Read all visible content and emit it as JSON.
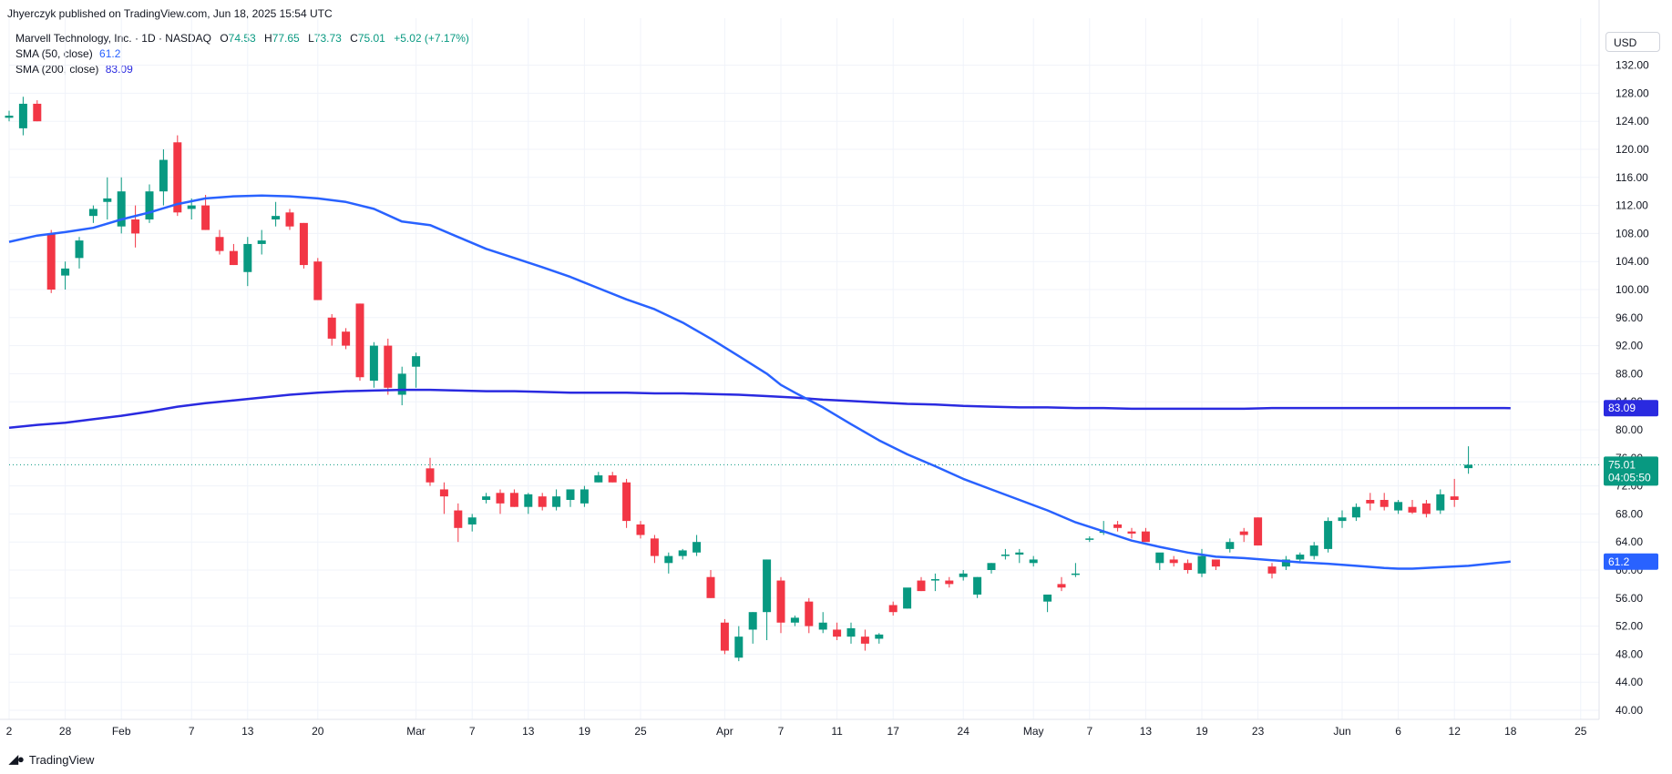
{
  "header": {
    "publisher": "Jhyerczyk published on TradingView.com, Jun 18, 2025 15:54 UTC"
  },
  "legend": {
    "symbol": "Marvell Technology, Inc. · 1D · NASDAQ",
    "o_label": "O",
    "o": "74.53",
    "h_label": "H",
    "h": "77.65",
    "l_label": "L",
    "l": "73.73",
    "c_label": "C",
    "c": "75.01",
    "change": "+5.02 (+7.17%)",
    "sma50_label": "SMA (50, close)",
    "sma50": "61.2",
    "sma200_label": "SMA (200, close)",
    "sma200": "83.09"
  },
  "currency": "USD",
  "footer": {
    "brand": "TradingView",
    "logo": "tradingview-logo-icon"
  },
  "colors": {
    "up": "#089981",
    "down": "#f23645",
    "sma50": "#2962ff",
    "sma200": "#2a2ae0",
    "last": "#089981"
  },
  "chart_data": {
    "type": "candlestick",
    "y_range": [
      38,
      138
    ],
    "y_ticks": [
      "40.00",
      "44.00",
      "48.00",
      "52.00",
      "56.00",
      "60.00",
      "64.00",
      "68.00",
      "72.00",
      "76.00",
      "80.00",
      "84.00",
      "88.00",
      "92.00",
      "96.00",
      "100.00",
      "104.00",
      "108.00",
      "112.00",
      "116.00",
      "120.00",
      "124.00",
      "128.00",
      "132.00"
    ],
    "x_ticks": [
      {
        "label": "2",
        "i": 0
      },
      {
        "label": "28",
        "i": 4
      },
      {
        "label": "Feb",
        "i": 8
      },
      {
        "label": "7",
        "i": 13
      },
      {
        "label": "13",
        "i": 17
      },
      {
        "label": "20",
        "i": 22
      },
      {
        "label": "Mar",
        "i": 29
      },
      {
        "label": "7",
        "i": 33
      },
      {
        "label": "13",
        "i": 37
      },
      {
        "label": "19",
        "i": 41
      },
      {
        "label": "25",
        "i": 45
      },
      {
        "label": "Apr",
        "i": 51
      },
      {
        "label": "7",
        "i": 55
      },
      {
        "label": "11",
        "i": 59
      },
      {
        "label": "17",
        "i": 63
      },
      {
        "label": "24",
        "i": 68
      },
      {
        "label": "May",
        "i": 73
      },
      {
        "label": "7",
        "i": 77
      },
      {
        "label": "13",
        "i": 81
      },
      {
        "label": "19",
        "i": 85
      },
      {
        "label": "23",
        "i": 89
      },
      {
        "label": "Jun",
        "i": 95
      },
      {
        "label": "6",
        "i": 99
      },
      {
        "label": "12",
        "i": 103
      },
      {
        "label": "18",
        "i": 107
      },
      {
        "label": "25",
        "i": 112
      }
    ],
    "candles": [
      [
        124.5,
        125.5,
        124,
        124.8
      ],
      [
        123,
        127.5,
        122,
        126.5
      ],
      [
        126.5,
        127,
        124,
        124
      ],
      [
        108,
        108.5,
        99.5,
        100
      ],
      [
        102,
        104,
        100,
        103
      ],
      [
        104.5,
        107.5,
        103,
        107
      ],
      [
        110.5,
        112,
        109.5,
        111.5
      ],
      [
        112.5,
        116,
        110,
        113
      ],
      [
        109,
        116,
        108,
        114
      ],
      [
        110,
        112,
        106,
        108
      ],
      [
        110,
        115,
        109.5,
        114
      ],
      [
        114,
        120,
        112,
        118.5
      ],
      [
        121,
        122,
        110.5,
        111
      ],
      [
        111.5,
        113,
        110,
        112
      ],
      [
        112,
        113.5,
        108.5,
        108.5
      ],
      [
        107.5,
        108.5,
        105,
        105.5
      ],
      [
        105.5,
        106.5,
        103.5,
        103.5
      ],
      [
        102.5,
        107.5,
        100.5,
        106.5
      ],
      [
        106.5,
        108.5,
        105,
        107
      ],
      [
        110,
        112.5,
        109,
        110.5
      ],
      [
        111,
        111.5,
        108.5,
        109
      ],
      [
        109.5,
        109.5,
        103,
        103.5
      ],
      [
        104,
        104.5,
        98.5,
        98.5
      ],
      [
        96,
        96.5,
        92,
        93
      ],
      [
        94,
        94.5,
        91.5,
        92
      ],
      [
        98,
        98,
        87,
        87.5
      ],
      [
        87,
        92.5,
        86,
        92
      ],
      [
        92,
        93,
        85,
        86
      ],
      [
        85,
        89,
        83.5,
        88
      ],
      [
        89,
        91,
        86,
        90.5
      ],
      [
        74.5,
        76,
        72,
        72.5
      ],
      [
        71.5,
        72.5,
        68,
        70.5
      ],
      [
        68.5,
        69.5,
        64,
        66
      ],
      [
        66.5,
        68,
        65.5,
        67.5
      ],
      [
        70,
        71,
        69.5,
        70.5
      ],
      [
        71,
        71.5,
        68,
        69.5
      ],
      [
        71,
        71.5,
        69,
        69
      ],
      [
        69,
        71,
        68,
        70.8
      ],
      [
        70.5,
        71,
        68.5,
        69
      ],
      [
        69,
        71.5,
        68.5,
        70.5
      ],
      [
        70,
        71.5,
        69,
        71.5
      ],
      [
        69.5,
        72,
        69,
        71.5
      ],
      [
        72.5,
        74,
        72.5,
        73.5
      ],
      [
        73.5,
        74,
        72.5,
        72.5
      ],
      [
        72.5,
        73,
        66,
        67
      ],
      [
        66.5,
        67,
        64.5,
        65
      ],
      [
        64.5,
        65,
        61,
        62
      ],
      [
        61,
        62.5,
        59.5,
        62
      ],
      [
        62,
        63,
        61.5,
        62.8
      ],
      [
        62.5,
        65,
        62,
        64
      ],
      [
        59,
        60,
        56,
        56
      ],
      [
        52.5,
        53,
        48,
        48.5
      ],
      [
        47.5,
        52,
        47,
        50.5
      ],
      [
        51.5,
        54,
        49.5,
        54
      ],
      [
        54,
        61.5,
        50,
        61.5
      ],
      [
        58.5,
        59,
        51,
        52.5
      ],
      [
        52.5,
        53.5,
        52,
        53.2
      ],
      [
        55.5,
        56,
        51,
        52
      ],
      [
        51.5,
        54,
        51,
        52.5
      ],
      [
        51.5,
        52.5,
        50,
        50.5
      ],
      [
        50.5,
        52.5,
        49.5,
        51.7
      ],
      [
        50.5,
        51.5,
        48.5,
        49.5
      ],
      [
        50.2,
        51,
        49.5,
        50.8
      ],
      [
        55,
        55.5,
        53.5,
        54
      ],
      [
        54.5,
        57,
        54.5,
        57.5
      ],
      [
        58.5,
        59,
        57,
        57
      ],
      [
        58.5,
        59.5,
        57,
        58.7
      ],
      [
        58.5,
        59,
        57.5,
        58
      ],
      [
        59,
        60,
        58.5,
        59.5
      ],
      [
        56.5,
        59,
        56,
        59
      ],
      [
        60,
        61,
        59.5,
        61
      ],
      [
        62,
        63,
        61.5,
        62.2
      ],
      [
        62.2,
        63,
        61,
        62.5
      ],
      [
        61,
        62,
        60.5,
        61.5
      ],
      [
        55.5,
        56,
        54,
        56.5
      ],
      [
        58,
        59,
        57,
        57.5
      ],
      [
        59.5,
        61,
        59,
        59.5
      ],
      [
        64.5,
        64.8,
        64,
        64.5
      ],
      [
        65.5,
        67,
        65,
        65.5
      ],
      [
        66.5,
        67,
        65.5,
        66
      ],
      [
        65.5,
        66,
        64.5,
        65.2
      ],
      [
        65.5,
        66,
        64,
        64
      ],
      [
        61,
        62,
        60,
        62.5
      ],
      [
        61.5,
        62,
        60.5,
        61
      ],
      [
        61,
        61.5,
        59.5,
        60
      ],
      [
        59.5,
        63,
        59,
        62
      ],
      [
        61.5,
        61.5,
        60,
        60.5
      ],
      [
        63,
        64.5,
        62.5,
        64
      ],
      [
        65.5,
        66,
        64,
        65
      ],
      [
        67.5,
        67.5,
        63.5,
        63.5
      ],
      [
        60.5,
        61,
        58.8,
        59.5
      ],
      [
        60.5,
        62,
        60,
        61.5
      ],
      [
        61.5,
        62.5,
        61,
        62.2
      ],
      [
        62,
        64,
        61.5,
        63.5
      ],
      [
        63,
        67.5,
        62.5,
        67
      ],
      [
        67,
        68.5,
        66,
        67.5
      ],
      [
        67.5,
        69.5,
        67,
        69
      ],
      [
        70,
        71,
        68.5,
        69.5
      ],
      [
        70,
        71,
        68.5,
        69
      ],
      [
        68.5,
        70,
        68,
        69.7
      ],
      [
        69,
        70,
        68,
        68.2
      ],
      [
        69.5,
        70,
        67.5,
        68
      ],
      [
        68.5,
        71.5,
        68,
        70.8
      ],
      [
        70.5,
        73,
        69,
        70
      ],
      [
        74.53,
        77.65,
        73.73,
        75.01
      ]
    ],
    "sma50": [
      [
        0,
        106.8
      ],
      [
        2,
        107.7
      ],
      [
        4,
        108.2
      ],
      [
        6,
        108.8
      ],
      [
        8,
        110
      ],
      [
        10,
        111
      ],
      [
        12,
        112.2
      ],
      [
        14,
        113
      ],
      [
        16,
        113.3
      ],
      [
        18,
        113.4
      ],
      [
        20,
        113.3
      ],
      [
        22,
        113
      ],
      [
        24,
        112.5
      ],
      [
        26,
        111.5
      ],
      [
        28,
        109.7
      ],
      [
        30,
        109.2
      ],
      [
        32,
        107.5
      ],
      [
        34,
        105.8
      ],
      [
        36,
        104.5
      ],
      [
        38,
        103.2
      ],
      [
        40,
        101.8
      ],
      [
        42,
        100.2
      ],
      [
        44,
        98.6
      ],
      [
        46,
        97.2
      ],
      [
        48,
        95.3
      ],
      [
        50,
        93
      ],
      [
        52,
        90.5
      ],
      [
        54,
        88
      ],
      [
        55,
        86.4
      ],
      [
        56,
        85.3
      ],
      [
        58,
        83.2
      ],
      [
        60,
        80.8
      ],
      [
        62,
        78.5
      ],
      [
        64,
        76.5
      ],
      [
        66,
        74.8
      ],
      [
        68,
        73
      ],
      [
        70,
        71.5
      ],
      [
        72,
        70
      ],
      [
        74,
        68.5
      ],
      [
        76,
        66.8
      ],
      [
        78,
        65.5
      ],
      [
        80,
        64.2
      ],
      [
        82,
        63.3
      ],
      [
        84,
        62.5
      ],
      [
        86,
        61.9
      ],
      [
        88,
        61.7
      ],
      [
        90,
        61.4
      ],
      [
        92,
        61.1
      ],
      [
        94,
        60.9
      ],
      [
        96,
        60.6
      ],
      [
        98,
        60.3
      ],
      [
        99,
        60.2
      ],
      [
        100,
        60.2
      ],
      [
        102,
        60.4
      ],
      [
        104,
        60.6
      ],
      [
        106,
        61
      ],
      [
        107,
        61.2
      ]
    ],
    "sma200": [
      [
        0,
        80.3
      ],
      [
        2,
        80.7
      ],
      [
        4,
        81
      ],
      [
        6,
        81.5
      ],
      [
        8,
        82
      ],
      [
        10,
        82.6
      ],
      [
        12,
        83.3
      ],
      [
        14,
        83.8
      ],
      [
        16,
        84.2
      ],
      [
        18,
        84.6
      ],
      [
        20,
        85
      ],
      [
        22,
        85.3
      ],
      [
        24,
        85.5
      ],
      [
        26,
        85.6
      ],
      [
        28,
        85.7
      ],
      [
        30,
        85.7
      ],
      [
        32,
        85.6
      ],
      [
        34,
        85.5
      ],
      [
        36,
        85.5
      ],
      [
        38,
        85.4
      ],
      [
        40,
        85.3
      ],
      [
        42,
        85.3
      ],
      [
        44,
        85.3
      ],
      [
        46,
        85.2
      ],
      [
        48,
        85.2
      ],
      [
        50,
        85.1
      ],
      [
        52,
        85
      ],
      [
        54,
        84.8
      ],
      [
        56,
        84.6
      ],
      [
        58,
        84.3
      ],
      [
        60,
        84.1
      ],
      [
        62,
        83.9
      ],
      [
        64,
        83.7
      ],
      [
        66,
        83.6
      ],
      [
        68,
        83.4
      ],
      [
        70,
        83.3
      ],
      [
        72,
        83.2
      ],
      [
        74,
        83.2
      ],
      [
        76,
        83.1
      ],
      [
        78,
        83.1
      ],
      [
        80,
        83
      ],
      [
        82,
        83
      ],
      [
        84,
        83
      ],
      [
        86,
        83
      ],
      [
        88,
        83
      ],
      [
        90,
        83.1
      ],
      [
        92,
        83.1
      ],
      [
        94,
        83.1
      ],
      [
        96,
        83.1
      ],
      [
        98,
        83.1
      ],
      [
        100,
        83.1
      ],
      [
        102,
        83.1
      ],
      [
        104,
        83.1
      ],
      [
        106,
        83.1
      ],
      [
        107,
        83.09
      ]
    ],
    "last_price": {
      "value": 75.01,
      "label": "75.01",
      "countdown": "04:05:50"
    },
    "sma50_tag": {
      "value": 61.2,
      "label": "61.2"
    },
    "sma200_tag": {
      "value": 83.09,
      "label": "83.09"
    }
  }
}
